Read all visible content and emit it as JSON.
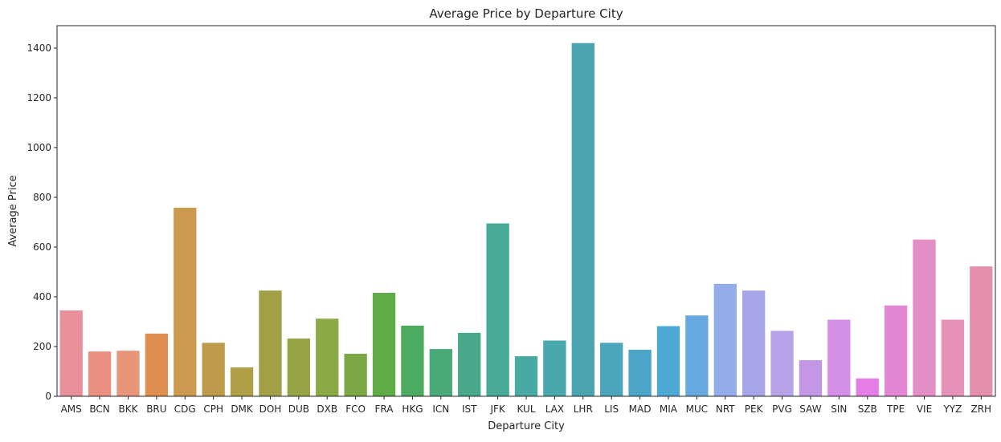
{
  "chart_data": {
    "type": "bar",
    "title": "Average Price by Departure City",
    "xlabel": "Departure City",
    "ylabel": "Average Price",
    "ylim": [
      0,
      1490
    ],
    "yticks": [
      0,
      200,
      400,
      600,
      800,
      1000,
      1200,
      1400
    ],
    "grid": false,
    "legend": "none",
    "categories": [
      "AMS",
      "BCN",
      "BKK",
      "BRU",
      "CDG",
      "CPH",
      "DMK",
      "DOH",
      "DUB",
      "DXB",
      "FCO",
      "FRA",
      "HKG",
      "ICN",
      "IST",
      "JFK",
      "KUL",
      "LAX",
      "LHR",
      "LIS",
      "MAD",
      "MIA",
      "MUC",
      "NRT",
      "PEK",
      "PVG",
      "SAW",
      "SIN",
      "SZB",
      "TPE",
      "VIE",
      "YYZ",
      "ZRH"
    ],
    "values": [
      345,
      180,
      183,
      252,
      758,
      215,
      116,
      425,
      232,
      312,
      171,
      416,
      284,
      190,
      255,
      695,
      161,
      224,
      1420,
      215,
      187,
      282,
      325,
      452,
      425,
      263,
      145,
      308,
      72,
      365,
      630,
      308,
      522
    ],
    "colors": [
      "#e9919b",
      "#ea9081",
      "#e8957a",
      "#de8e4f",
      "#cc9a4e",
      "#bd9b4a",
      "#b09f46",
      "#a39f47",
      "#97a445",
      "#8ba945",
      "#7ba844",
      "#5fac46",
      "#4bac60",
      "#4aa979",
      "#4aa88a",
      "#48ab97",
      "#48aaa2",
      "#49a8ab",
      "#4ba5b0",
      "#4ba6bc",
      "#4aa5c9",
      "#4da9d3",
      "#66a8e0",
      "#93acea",
      "#a6a5ea",
      "#b7a2e8",
      "#c496e6",
      "#d48fe6",
      "#e57de7",
      "#e486d3",
      "#e48ec8",
      "#e591b8",
      "#e68fad"
    ]
  }
}
